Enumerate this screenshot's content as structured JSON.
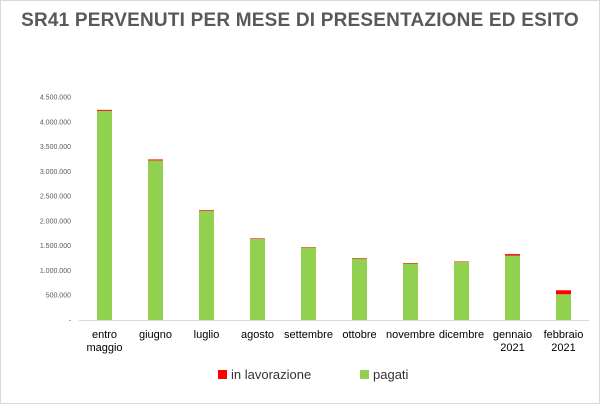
{
  "chart_data": {
    "type": "bar",
    "stacked": true,
    "title": "SR41 PERVENUTI PER MESE DI PRESENTAZIONE ED ESITO",
    "xlabel": "",
    "ylabel": "",
    "categories": [
      [
        "entro",
        "maggio"
      ],
      [
        "giugno"
      ],
      [
        "luglio"
      ],
      [
        "agosto"
      ],
      [
        "settembre"
      ],
      [
        "ottobre"
      ],
      [
        "novembre"
      ],
      [
        "dicembre"
      ],
      [
        "gennaio",
        "2021"
      ],
      [
        "febbraio",
        "2021"
      ]
    ],
    "series": [
      {
        "name": "pagati",
        "color": "#92d050",
        "values": [
          4220000,
          3220000,
          2200000,
          1640000,
          1460000,
          1240000,
          1140000,
          1170000,
          1300000,
          520000
        ]
      },
      {
        "name": "in lavorazione",
        "color": "#ff0000",
        "values": [
          20000,
          20000,
          15000,
          10000,
          10000,
          10000,
          10000,
          10000,
          30000,
          80000
        ]
      }
    ],
    "ylim": [
      0,
      4500000
    ],
    "yticks": [
      {
        "value": 0,
        "label": "-"
      },
      {
        "value": 500000,
        "label": "500.000"
      },
      {
        "value": 1000000,
        "label": "1.000.000"
      },
      {
        "value": 1500000,
        "label": "1.500.000"
      },
      {
        "value": 2000000,
        "label": "2.000.000"
      },
      {
        "value": 2500000,
        "label": "2.500.000"
      },
      {
        "value": 3000000,
        "label": "3.000.000"
      },
      {
        "value": 3500000,
        "label": "3.500.000"
      },
      {
        "value": 4000000,
        "label": "4.000.000"
      },
      {
        "value": 4500000,
        "label": "4.500.000"
      }
    ],
    "grid": false,
    "legend": {
      "placement": "bottom",
      "order": [
        "in lavorazione",
        "pagati"
      ]
    }
  }
}
